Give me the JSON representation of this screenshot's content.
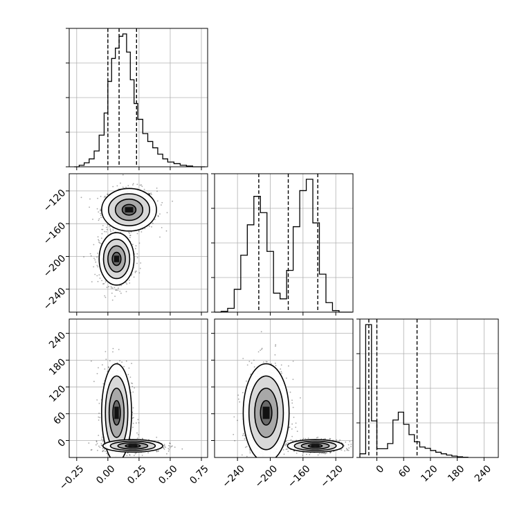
{
  "chart_data": {
    "type": "corner",
    "parameters": 3,
    "grid": true,
    "x_ticks": [
      {
        "values": [
          -0.25,
          0.0,
          0.25,
          0.5,
          0.75
        ],
        "labels": [
          "−0.25",
          "0.00",
          "0.25",
          "0.50",
          "0.75"
        ],
        "range": [
          -0.31,
          0.8
        ]
      },
      {
        "values": [
          -240,
          -200,
          -160,
          -120
        ],
        "labels": [
          "−240",
          "−200",
          "−160",
          "−120"
        ],
        "range": [
          -268,
          -99
        ]
      },
      {
        "values": [
          0,
          60,
          120,
          180,
          240
        ],
        "labels": [
          "0",
          "60",
          "120",
          "180",
          "240"
        ],
        "range": [
          -38,
          272
        ]
      }
    ],
    "y_ticks": [
      {
        "values": [
          -120,
          -160,
          -200,
          -240
        ],
        "labels": [
          "−120",
          "−160",
          "−200",
          "−240"
        ],
        "range": [
          -268,
          -99
        ]
      },
      {
        "values": [
          240,
          180,
          120,
          60,
          0
        ],
        "labels": [
          "240",
          "180",
          "120",
          "60",
          "0"
        ],
        "range": [
          -38,
          272
        ]
      }
    ],
    "histograms": [
      {
        "param": 0,
        "bin_edges": [
          -0.27,
          -0.23,
          -0.19,
          -0.15,
          -0.11,
          -0.07,
          -0.03,
          0.0,
          0.03,
          0.06,
          0.09,
          0.12,
          0.15,
          0.18,
          0.21,
          0.24,
          0.28,
          0.32,
          0.36,
          0.4,
          0.44,
          0.48,
          0.53,
          0.58,
          0.63,
          0.68,
          0.73,
          0.78
        ],
        "counts": [
          0,
          2,
          5,
          10,
          20,
          40,
          68,
          108,
          137,
          150,
          165,
          168,
          145,
          110,
          80,
          60,
          42,
          32,
          24,
          16,
          10,
          6,
          4,
          2,
          1,
          0,
          0
        ],
        "quantiles": [
          0.0,
          0.09,
          0.23
        ]
      },
      {
        "param": 1,
        "bin_edges": [
          -268,
          -260,
          -252,
          -244,
          -236,
          -228,
          -220,
          -212,
          -204,
          -196,
          -188,
          -180,
          -172,
          -164,
          -156,
          -148,
          -140,
          -132,
          -124,
          -116,
          -108,
          -100
        ],
        "counts": [
          0,
          2,
          10,
          60,
          150,
          230,
          305,
          262,
          160,
          50,
          35,
          110,
          225,
          320,
          350,
          235,
          100,
          25,
          4,
          0,
          0
        ],
        "quantiles": [
          -214,
          -178,
          -142
        ]
      },
      {
        "param": 2,
        "bin_edges": [
          -38,
          -25,
          -12,
          0,
          12,
          24,
          36,
          48,
          60,
          72,
          84,
          96,
          108,
          120,
          132,
          144,
          156,
          168,
          180,
          192,
          204
        ],
        "counts": [
          42,
          1525,
          420,
          100,
          100,
          160,
          430,
          520,
          380,
          262,
          180,
          120,
          105,
          80,
          60,
          42,
          28,
          16,
          8,
          3
        ],
        "quantiles": [
          -18,
          0,
          90
        ]
      }
    ],
    "joint_distributions": [
      {
        "x_param": 0,
        "y_param": 1,
        "modes": [
          {
            "cx": 0.17,
            "cy": -143,
            "sx": 0.11,
            "sy": 13,
            "weight": 0.5
          },
          {
            "cx": 0.07,
            "cy": -203,
            "sx": 0.07,
            "sy": 16,
            "weight": 0.5
          }
        ]
      },
      {
        "x_param": 0,
        "y_param": 2,
        "modes": [
          {
            "cx": 0.07,
            "cy": 62,
            "sx": 0.06,
            "sy": 55,
            "weight": 0.5
          },
          {
            "cx": 0.2,
            "cy": -12,
            "sx": 0.12,
            "sy": 7,
            "weight": 0.5
          }
        ]
      },
      {
        "x_param": 1,
        "y_param": 2,
        "modes": [
          {
            "cx": -205,
            "cy": 62,
            "sx": 14,
            "sy": 55,
            "weight": 0.5
          },
          {
            "cx": -145,
            "cy": -12,
            "sx": 17,
            "sy": 7,
            "weight": 0.5
          }
        ]
      }
    ]
  }
}
